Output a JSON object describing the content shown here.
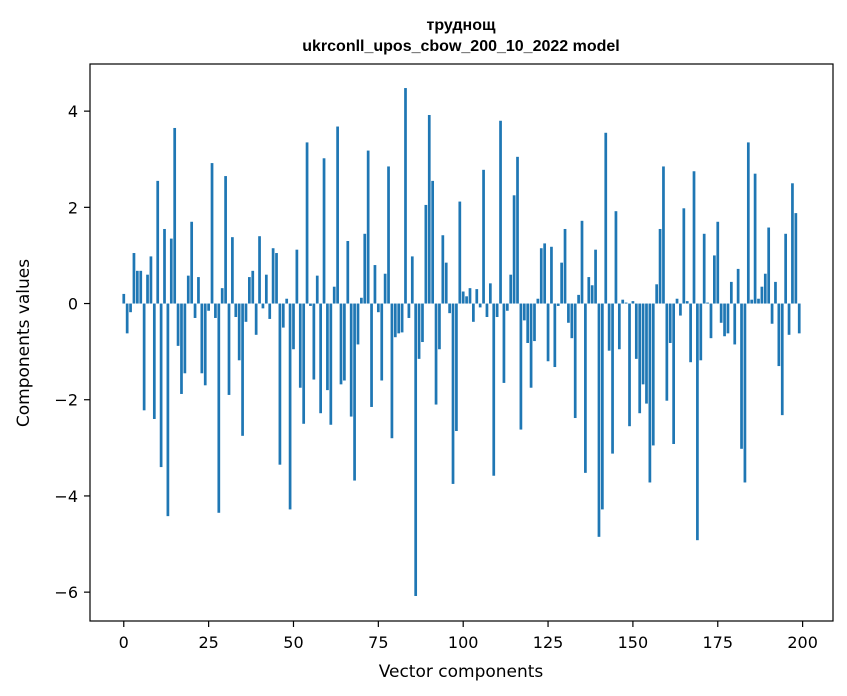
{
  "chart_data": {
    "type": "bar",
    "title_line1": "труднощ",
    "title_line2": "ukrconll_upos_cbow_200_10_2022 model",
    "xlabel": "Vector components",
    "ylabel": "Components values",
    "xlim": [
      -9.95,
      208.95
    ],
    "ylim": [
      -6.6,
      4.98
    ],
    "xticks": [
      0,
      25,
      50,
      75,
      100,
      125,
      150,
      175,
      200
    ],
    "xtick_labels": [
      "0",
      "25",
      "50",
      "75",
      "100",
      "125",
      "150",
      "175",
      "200"
    ],
    "yticks": [
      -6,
      -4,
      -2,
      0,
      2,
      4
    ],
    "ytick_labels": [
      "−6",
      "−4",
      "−2",
      "0",
      "2",
      "4"
    ],
    "bar_color": "#1f77b4",
    "grid": false,
    "x": [
      0,
      1,
      2,
      3,
      4,
      5,
      6,
      7,
      8,
      9,
      10,
      11,
      12,
      13,
      14,
      15,
      16,
      17,
      18,
      19,
      20,
      21,
      22,
      23,
      24,
      25,
      26,
      27,
      28,
      29,
      30,
      31,
      32,
      33,
      34,
      35,
      36,
      37,
      38,
      39,
      40,
      41,
      42,
      43,
      44,
      45,
      46,
      47,
      48,
      49,
      50,
      51,
      52,
      53,
      54,
      55,
      56,
      57,
      58,
      59,
      60,
      61,
      62,
      63,
      64,
      65,
      66,
      67,
      68,
      69,
      70,
      71,
      72,
      73,
      74,
      75,
      76,
      77,
      78,
      79,
      80,
      81,
      82,
      83,
      84,
      85,
      86,
      87,
      88,
      89,
      90,
      91,
      92,
      93,
      94,
      95,
      96,
      97,
      98,
      99,
      100,
      101,
      102,
      103,
      104,
      105,
      106,
      107,
      108,
      109,
      110,
      111,
      112,
      113,
      114,
      115,
      116,
      117,
      118,
      119,
      120,
      121,
      122,
      123,
      124,
      125,
      126,
      127,
      128,
      129,
      130,
      131,
      132,
      133,
      134,
      135,
      136,
      137,
      138,
      139,
      140,
      141,
      142,
      143,
      144,
      145,
      146,
      147,
      148,
      149,
      150,
      151,
      152,
      153,
      154,
      155,
      156,
      157,
      158,
      159,
      160,
      161,
      162,
      163,
      164,
      165,
      166,
      167,
      168,
      169,
      170,
      171,
      172,
      173,
      174,
      175,
      176,
      177,
      178,
      179,
      180,
      181,
      182,
      183,
      184,
      185,
      186,
      187,
      188,
      189,
      190,
      191,
      192,
      193,
      194,
      195,
      196,
      197,
      198,
      199
    ],
    "values": [
      0.2,
      -0.62,
      -0.18,
      1.05,
      0.68,
      0.68,
      -2.22,
      0.6,
      0.98,
      -2.4,
      2.55,
      -3.4,
      1.55,
      -4.42,
      1.35,
      3.65,
      -0.88,
      -1.88,
      -1.45,
      0.58,
      1.7,
      -0.3,
      0.55,
      -1.45,
      -1.7,
      -0.15,
      2.92,
      -0.3,
      -4.35,
      0.32,
      2.65,
      -1.9,
      1.38,
      -0.28,
      -1.18,
      -2.75,
      -0.38,
      0.55,
      0.68,
      -0.65,
      1.4,
      -0.1,
      0.6,
      -0.32,
      1.15,
      1.05,
      -3.35,
      -0.5,
      0.1,
      -4.28,
      -0.95,
      1.12,
      -1.75,
      -2.5,
      3.35,
      -0.05,
      -1.58,
      0.58,
      -2.28,
      3.02,
      -1.8,
      -2.52,
      0.35,
      3.68,
      -1.68,
      -1.6,
      1.3,
      -2.35,
      -3.68,
      -0.85,
      0.12,
      1.45,
      3.18,
      -2.15,
      0.8,
      -0.18,
      -1.6,
      0.62,
      2.85,
      -2.8,
      -0.7,
      -0.62,
      -0.6,
      4.48,
      -0.3,
      0.98,
      -6.08,
      -1.15,
      -0.8,
      2.05,
      3.92,
      2.55,
      -2.1,
      -0.95,
      1.42,
      0.85,
      -0.2,
      -3.75,
      -2.65,
      2.12,
      0.25,
      0.15,
      0.32,
      -0.38,
      0.3,
      -0.08,
      2.78,
      -0.28,
      0.42,
      -3.58,
      -0.28,
      3.8,
      -1.65,
      -0.15,
      0.6,
      2.25,
      3.05,
      -2.62,
      -0.35,
      -0.82,
      -1.75,
      -0.78,
      0.1,
      1.15,
      1.25,
      -1.2,
      1.18,
      -1.32,
      -0.05,
      0.85,
      1.55,
      -0.4,
      -0.72,
      -2.38,
      0.18,
      1.72,
      -3.52,
      0.55,
      0.38,
      1.12,
      -4.85,
      -4.28,
      3.55,
      -0.98,
      -3.12,
      1.92,
      -0.95,
      0.08,
      0.02,
      -2.55,
      0.05,
      -1.15,
      -2.28,
      -1.68,
      -2.08,
      -3.72,
      -2.95,
      0.4,
      1.55,
      2.85,
      -2.02,
      -0.82,
      -2.92,
      0.1,
      -0.25,
      1.98,
      0.05,
      -1.22,
      2.75,
      -4.92,
      -1.18,
      1.45,
      0.02,
      -0.72,
      1.0,
      1.7,
      -0.4,
      -0.68,
      -0.62,
      0.45,
      -0.85,
      0.72,
      -3.02,
      -3.72,
      3.35,
      0.08,
      2.7,
      0.1,
      0.35,
      0.62,
      1.58,
      -0.42,
      0.45,
      -1.3,
      -2.32,
      1.45,
      -0.65,
      2.5,
      1.88,
      -0.62
    ]
  }
}
